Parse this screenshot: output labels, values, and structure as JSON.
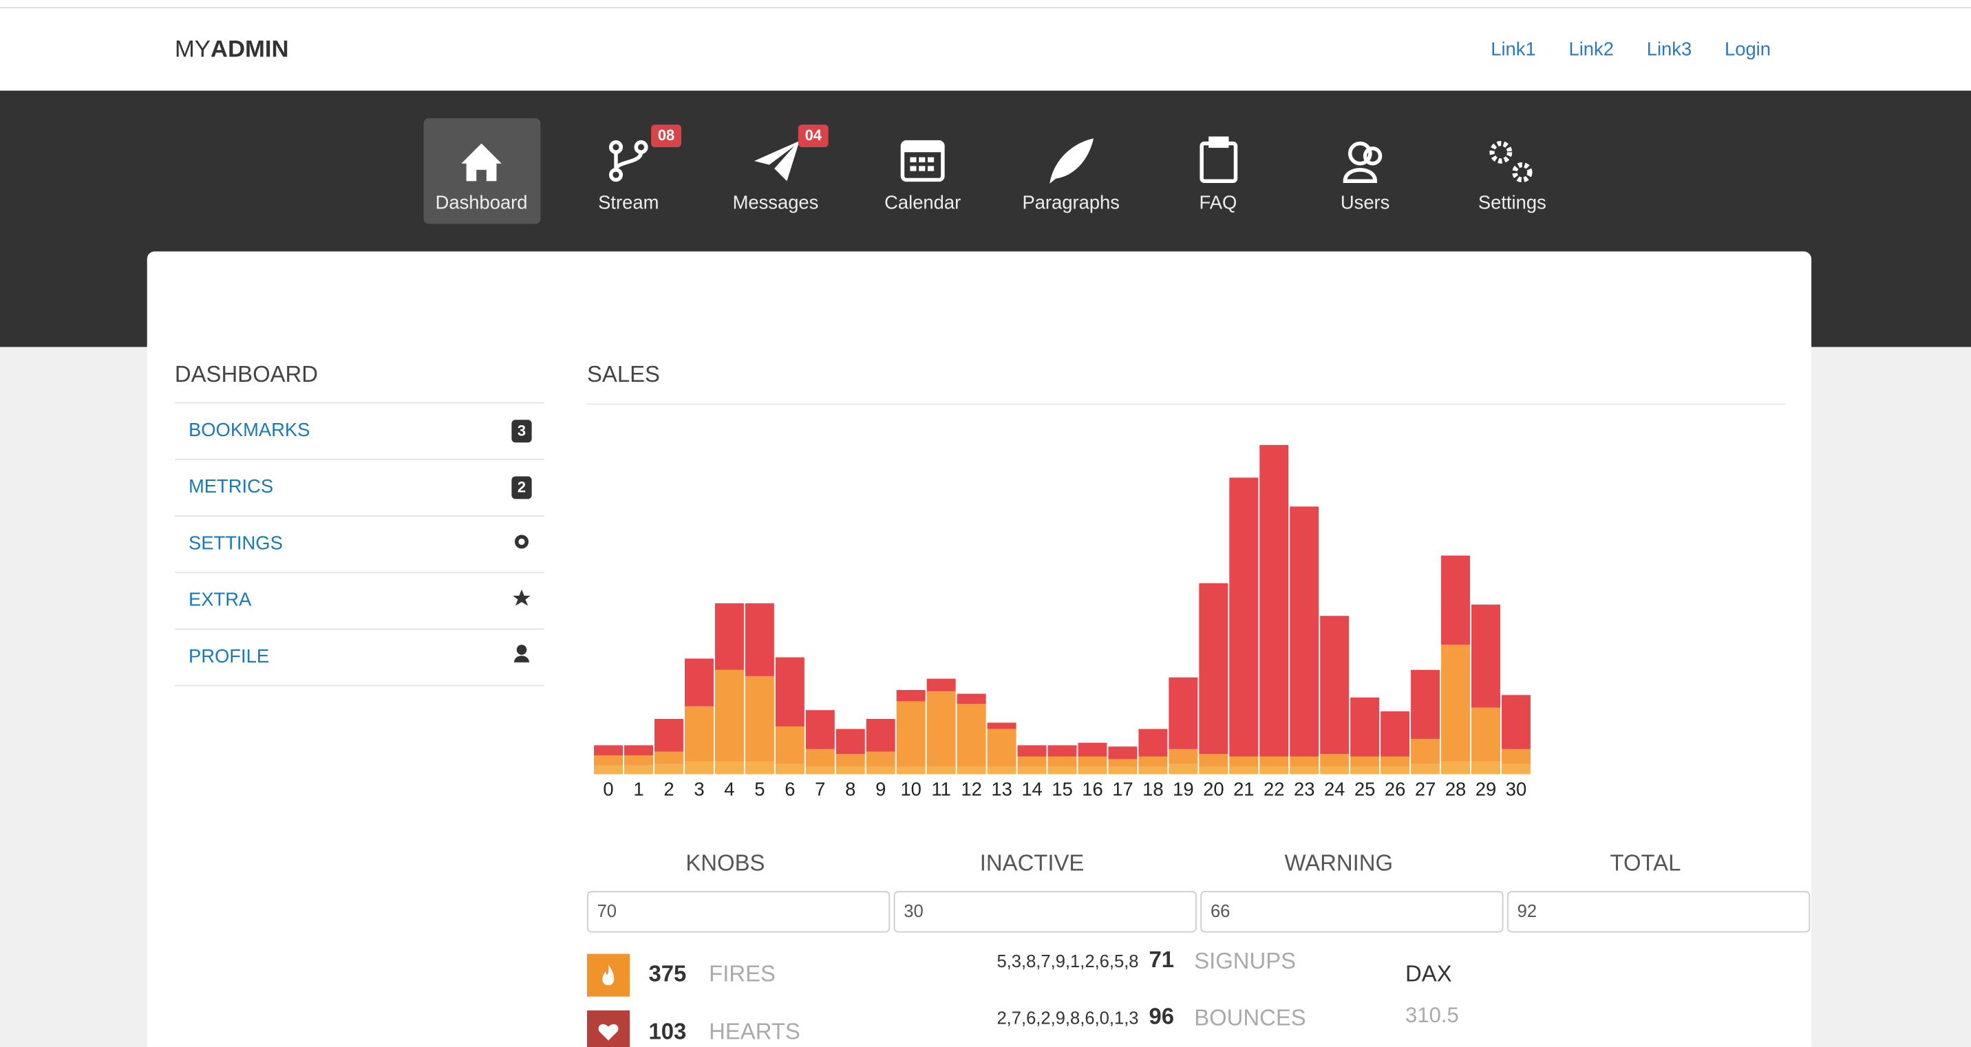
{
  "header": {
    "brand_prefix": "MY",
    "brand_bold": "ADMIN",
    "links": [
      "Link1",
      "Link2",
      "Link3",
      "Login"
    ]
  },
  "nav": [
    {
      "label": "Dashboard"
    },
    {
      "label": "Stream",
      "badge": "08"
    },
    {
      "label": "Messages",
      "badge": "04"
    },
    {
      "label": "Calendar"
    },
    {
      "label": "Paragraphs"
    },
    {
      "label": "FAQ"
    },
    {
      "label": "Users"
    },
    {
      "label": "Settings"
    }
  ],
  "sidebar": {
    "title": "DASHBOARD",
    "items": [
      {
        "label": "BOOKMARKS",
        "badge": 3
      },
      {
        "label": "METRICS",
        "badge": 2
      },
      {
        "label": "SETTINGS"
      },
      {
        "label": "EXTRA"
      },
      {
        "label": "PROFILE"
      }
    ]
  },
  "chart_data": {
    "type": "bar",
    "stacked": true,
    "title": "SALES",
    "categories": [
      "0",
      "1",
      "2",
      "3",
      "4",
      "5",
      "6",
      "7",
      "8",
      "9",
      "10",
      "11",
      "12",
      "13",
      "14",
      "15",
      "16",
      "17",
      "18",
      "19",
      "20",
      "21",
      "22",
      "23",
      "24",
      "25",
      "26",
      "27",
      "28",
      "29",
      "30"
    ],
    "series": [
      {
        "color": "#f7b04e",
        "values": [
          7,
          7,
          8,
          10,
          10,
          10,
          8,
          6,
          6,
          6,
          6,
          6,
          6,
          6,
          6,
          6,
          6,
          6,
          6,
          8,
          6,
          6,
          6,
          6,
          6,
          6,
          6,
          8,
          10,
          10,
          8
        ]
      },
      {
        "color": "#f69d40",
        "values": [
          8,
          8,
          10,
          44,
          73,
          68,
          30,
          14,
          10,
          12,
          52,
          60,
          50,
          30,
          8,
          8,
          8,
          6,
          8,
          12,
          10,
          8,
          8,
          8,
          10,
          8,
          8,
          20,
          93,
          43,
          12
        ]
      },
      {
        "color": "#e5474d",
        "values": [
          8,
          8,
          26,
          38,
          53,
          58,
          55,
          31,
          20,
          26,
          9,
          10,
          8,
          5,
          9,
          9,
          11,
          10,
          22,
          57,
          136,
          222,
          248,
          199,
          110,
          47,
          36,
          55,
          71,
          82,
          43
        ]
      }
    ]
  },
  "stats": {
    "columns": [
      {
        "label": "KNOBS",
        "value": 70
      },
      {
        "label": "INACTIVE",
        "value": 30
      },
      {
        "label": "WARNING",
        "value": 66
      },
      {
        "label": "TOTAL",
        "value": 92
      }
    ],
    "fires": {
      "value": 375,
      "label": "FIRES"
    },
    "hearts": {
      "value": 103,
      "label": "HEARTS"
    },
    "signups": {
      "spark": "5,3,8,7,9,1,2,6,5,8",
      "value": 71,
      "label": "SIGNUPS"
    },
    "bounces": {
      "spark": "2,7,6,2,9,8,6,0,1,3",
      "value": 96,
      "label": "BOUNCES"
    },
    "dax": {
      "label": "DAX",
      "value": 310.5
    }
  }
}
